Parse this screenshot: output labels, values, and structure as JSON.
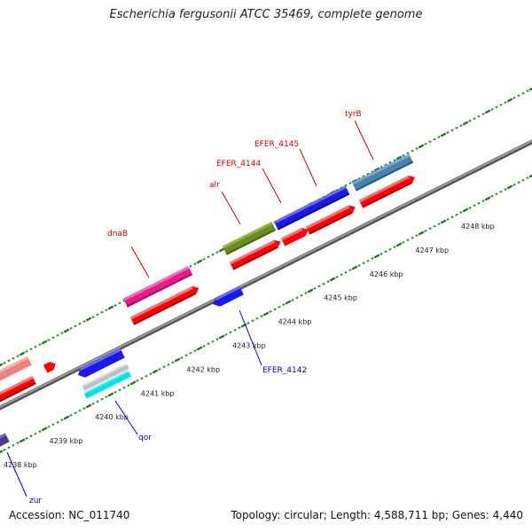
{
  "header": {
    "title": "Escherichia fergusonii ATCC 35469, complete genome"
  },
  "footer": {
    "accession": "Accession: NC_011740",
    "topology": "Topology: circular; Length: 4,588,711 bp; Genes: 4,440"
  },
  "colors": {
    "backbone": "#7a7a7a",
    "tick_minor": "#2f8f2f",
    "tick_major": "#1f6f1f",
    "label_forward": "#cc0000",
    "label_reverse": "#0000cc"
  },
  "scale": {
    "labels": [
      "4238 kbp",
      "4239 kbp",
      "4240 kbp",
      "4241 kbp",
      "4242 kbp",
      "4243 kbp",
      "4244 kbp",
      "4245 kbp",
      "4246 kbp",
      "4247 kbp",
      "4248 kbp"
    ]
  },
  "genes": {
    "forward": [
      {
        "name": "dnaB",
        "color": "#e8198b"
      },
      {
        "name": "alr",
        "color": "#6b8e23"
      },
      {
        "name": "EFER_4144",
        "color": "#1a1ae6"
      },
      {
        "name": "EFER_4145",
        "color": "#1a1ae6"
      },
      {
        "name": "tyrB",
        "color": "#4682b4"
      }
    ],
    "reverse": [
      {
        "name": "EFER_4142",
        "color": "#1a1ae6"
      },
      {
        "name": "qor",
        "color": "#00e5e5"
      },
      {
        "name": "zur",
        "color": "#483d8b"
      }
    ],
    "unlabeled": [
      {
        "color": "#f08080"
      },
      {
        "color": "#ff0000"
      },
      {
        "color": "#c0c0c0"
      }
    ]
  }
}
